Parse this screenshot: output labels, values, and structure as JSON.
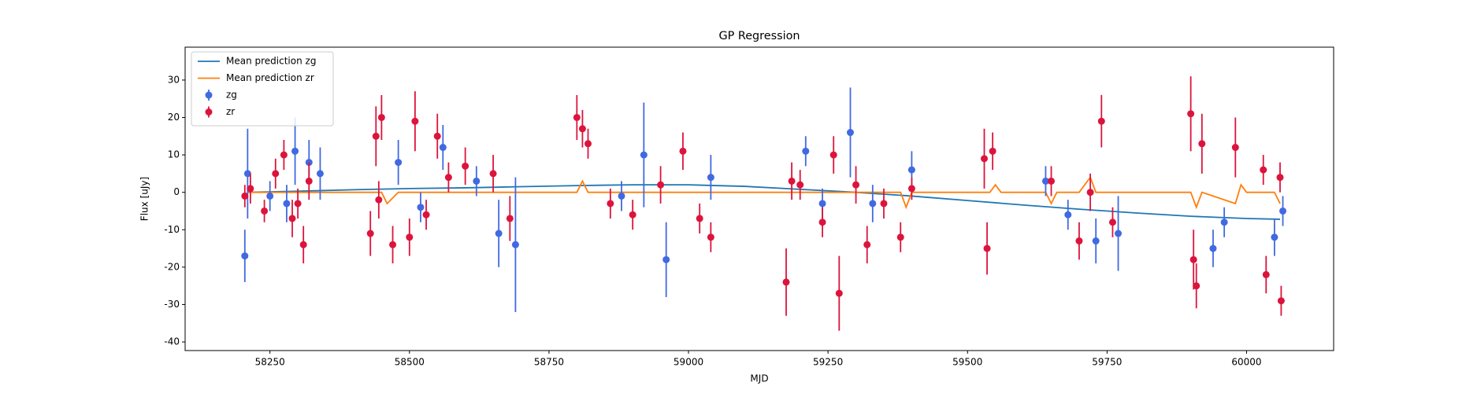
{
  "chart_data": {
    "type": "errorbar",
    "title": "GP Regression",
    "x_label": "MJD",
    "y_label": "Flux [uJy]",
    "xlim": [
      58098,
      60156
    ],
    "ylim": [
      -42.3,
      38.8
    ],
    "xticks": [
      58250,
      58500,
      58750,
      59000,
      59250,
      59500,
      59750,
      60000
    ],
    "yticks": [
      -40,
      -30,
      -20,
      -10,
      0,
      10,
      20,
      30
    ],
    "grid": false,
    "legend": "upper left",
    "series": [
      {
        "name": "Mean prediction zg",
        "style": "line",
        "color": "#1f77b4",
        "x": [
          58210,
          58300,
          58400,
          58500,
          58600,
          58700,
          58800,
          58900,
          59000,
          59100,
          59200,
          59300,
          59400,
          59500,
          59600,
          59700,
          59800,
          59900,
          60000,
          60060
        ],
        "values": [
          0,
          0.3,
          0.7,
          1,
          1.2,
          1.5,
          1.8,
          2,
          2,
          1.6,
          0.8,
          0,
          -1,
          -2.2,
          -3.4,
          -4.5,
          -5.5,
          -6.4,
          -7,
          -7.2
        ]
      },
      {
        "name": "Mean prediction zr",
        "style": "line",
        "color": "#ff7f0e",
        "x": [
          58210,
          58450,
          58460,
          58480,
          58700,
          58800,
          58810,
          58820,
          59000,
          59380,
          59390,
          59400,
          59540,
          59550,
          59560,
          59640,
          59650,
          59660,
          59700,
          59720,
          59730,
          59900,
          59910,
          59920,
          59980,
          59990,
          60000,
          60050,
          60060
        ],
        "values": [
          0,
          0,
          -3,
          0,
          0,
          0,
          3,
          0,
          0,
          0,
          -4,
          0,
          0,
          2,
          0,
          0,
          -3,
          0,
          0,
          4,
          0,
          0,
          -4,
          0,
          -3,
          2,
          0,
          0,
          -3
        ]
      },
      {
        "name": "zg",
        "style": "points",
        "color": "#4169e1",
        "x": [
          58205,
          58210,
          58250,
          58280,
          58295,
          58320,
          58340,
          58480,
          58520,
          58560,
          58620,
          58660,
          58690,
          58880,
          58920,
          58960,
          59040,
          59210,
          59240,
          59290,
          59330,
          59400,
          59640,
          59680,
          59730,
          59770,
          59940,
          59960,
          60050,
          60065
        ],
        "values": [
          -17,
          5,
          -1,
          -3,
          11,
          8,
          5,
          8,
          -4,
          12,
          3,
          -11,
          -14,
          -1,
          10,
          -18,
          4,
          11,
          -3,
          16,
          -3,
          6,
          3,
          -6,
          -13,
          -11,
          -15,
          -8,
          -12,
          -5
        ],
        "errors": [
          7,
          12,
          4,
          5,
          9,
          6,
          7,
          6,
          4,
          6,
          4,
          9,
          18,
          4,
          14,
          10,
          6,
          4,
          4,
          12,
          5,
          5,
          4,
          4,
          6,
          10,
          5,
          4,
          5,
          4
        ]
      },
      {
        "name": "zr",
        "style": "points",
        "color": "#dc143c",
        "x": [
          58205,
          58215,
          58240,
          58260,
          58275,
          58290,
          58300,
          58310,
          58320,
          58430,
          58440,
          58445,
          58450,
          58470,
          58500,
          58510,
          58530,
          58550,
          58570,
          58600,
          58650,
          58680,
          58800,
          58810,
          58820,
          58860,
          58900,
          58950,
          58990,
          59020,
          59040,
          59175,
          59185,
          59200,
          59240,
          59260,
          59270,
          59300,
          59320,
          59350,
          59380,
          59400,
          59530,
          59535,
          59545,
          59650,
          59700,
          59720,
          59740,
          59760,
          59900,
          59905,
          59910,
          59920,
          59980,
          60030,
          60035,
          60060,
          60062
        ],
        "values": [
          -1,
          1,
          -5,
          5,
          10,
          -7,
          -3,
          -14,
          3,
          -11,
          15,
          -2,
          20,
          -14,
          -12,
          19,
          -6,
          15,
          4,
          7,
          5,
          -7,
          20,
          17,
          13,
          -3,
          -6,
          2,
          11,
          -7,
          -12,
          -24,
          3,
          2,
          -8,
          10,
          -27,
          2,
          -14,
          -3,
          -12,
          1,
          9,
          -15,
          11,
          3,
          -13,
          0,
          19,
          -8,
          21,
          -18,
          -25,
          13,
          12,
          6,
          -22,
          4,
          -29
        ],
        "errors": [
          3,
          4,
          3,
          4,
          4,
          5,
          4,
          5,
          5,
          6,
          8,
          5,
          6,
          5,
          5,
          8,
          4,
          6,
          4,
          5,
          5,
          6,
          6,
          5,
          4,
          4,
          4,
          5,
          5,
          4,
          4,
          9,
          5,
          4,
          4,
          5,
          10,
          5,
          5,
          4,
          4,
          3,
          8,
          7,
          5,
          4,
          5,
          5,
          7,
          4,
          10,
          8,
          6,
          8,
          8,
          4,
          5,
          4,
          4
        ]
      }
    ]
  }
}
